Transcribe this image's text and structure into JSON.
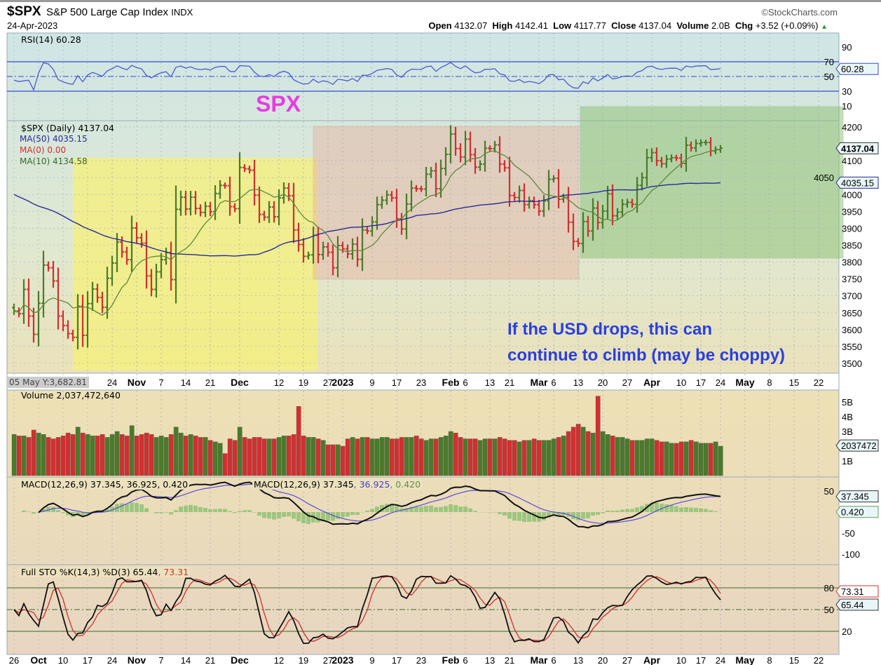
{
  "header": {
    "symbol": "$SPX",
    "name": "S&P 500 Large Cap Index",
    "exchange": "INDX",
    "date": "24-Apr-2023",
    "brand": "©StockCharts.com",
    "open_label": "Open",
    "open": "4132.07",
    "high_label": "High",
    "high": "4142.41",
    "low_label": "Low",
    "low": "4117.77",
    "close_label": "Close",
    "close": "4137.04",
    "volume_label": "Volume",
    "volume": "2.0B",
    "chg_label": "Chg",
    "chg": "+3.52 (+0.09%)"
  },
  "annotations": {
    "title": "SPX",
    "note_line1": "If the USD drops, this can",
    "note_line2": "continue to climb (may be choppy)"
  },
  "colors": {
    "up": "#4a7a2a",
    "down": "#d03030",
    "ma50": "#2a2a9a",
    "ma10": "#5a8a3a",
    "rsi": "#4a5ad0",
    "macd": "#111111",
    "signal": "#5a4ae0",
    "hist": "#8ac070",
    "yellow_box": "#f5f07a",
    "pink_box": "#e8b0a0",
    "green_box": "#8ac070"
  },
  "cursor_readout": "05 May Y:3,682.81",
  "chart_data": [
    {
      "type": "line",
      "title": "RSI(14) 60.28",
      "legend": "RSI(14) 60.28",
      "yticks": [
        90,
        70,
        50,
        30,
        10
      ],
      "ylim": [
        0,
        100
      ],
      "last_label": "60.28"
    },
    {
      "type": "ohlc",
      "title": "$SPX (Daily) 4137.04",
      "legend": [
        "$SPX (Daily) 4137.04",
        "MA(50) 4035.15",
        "MA(0) 0.00",
        "MA(10) 4134.58"
      ],
      "ylim": [
        3475,
        4225
      ],
      "yticks": [
        4200,
        4150,
        4100,
        4050,
        4000,
        3950,
        3900,
        3850,
        3800,
        3750,
        3700,
        3650,
        3600,
        3550,
        3500
      ],
      "last_labels": [
        "4137.04",
        "4035.15"
      ],
      "dates_start": "2022-09-26",
      "dates_end": "2023-04-24",
      "closes": [
        3655,
        3647,
        3719,
        3640,
        3586,
        3678,
        3791,
        3783,
        3744,
        3640,
        3612,
        3588,
        3577,
        3669,
        3583,
        3677,
        3720,
        3695,
        3666,
        3752,
        3797,
        3859,
        3830,
        3807,
        3901,
        3872,
        3856,
        3759,
        3719,
        3771,
        3807,
        3828,
        3748,
        3956,
        3992,
        3957,
        3992,
        3959,
        3947,
        3965,
        3949,
        4003,
        4027,
        4026,
        3964,
        3958,
        4080,
        4076,
        4072,
        3998,
        3941,
        3933,
        3963,
        3934,
        3990,
        4019,
        3996,
        3895,
        3852,
        3817,
        3821,
        3879,
        3822,
        3845,
        3829,
        3783,
        3849,
        3839,
        3824,
        3853,
        3808,
        3895,
        3892,
        3919,
        3970,
        3983,
        3999,
        3990,
        3928,
        3898,
        3972,
        4019,
        4017,
        4016,
        4060,
        4070,
        4017,
        4077,
        4119,
        4179,
        4136,
        4111,
        4164,
        4118,
        4081,
        4090,
        4137,
        4136,
        4147,
        4090,
        4079,
        3997,
        3991,
        4012,
        3970,
        3982,
        3970,
        3951,
        3981,
        4045,
        4048,
        3986,
        3992,
        3918,
        3861,
        3855,
        3920,
        3892,
        3960,
        3917,
        3951,
        4002,
        3937,
        3948,
        3971,
        3977,
        3971,
        4027,
        4050,
        4109,
        4124,
        4100,
        4091,
        4105,
        4109,
        4108,
        4092,
        4146,
        4138,
        4151,
        4154,
        4154,
        4129,
        4133,
        4137
      ]
    },
    {
      "type": "bar",
      "title": "Volume 2,037,472,640",
      "legend": "Volume 2,037,472,640",
      "unit": "B",
      "yticks": [
        "5B",
        "4B",
        "3B",
        "1B"
      ],
      "last_label": "2037472",
      "values": [
        2.8,
        2.7,
        2.7,
        2.6,
        3.1,
        2.9,
        2.8,
        2.6,
        2.5,
        2.6,
        2.7,
        2.9,
        2.8,
        3.3,
        2.9,
        2.8,
        2.7,
        2.7,
        2.8,
        2.6,
        2.8,
        3.0,
        2.8,
        2.7,
        3.4,
        2.7,
        2.8,
        2.9,
        2.8,
        2.6,
        2.7,
        2.6,
        2.8,
        3.3,
        2.9,
        2.7,
        2.8,
        2.7,
        2.6,
        2.6,
        2.4,
        2.3,
        2.2,
        1.5,
        2.5,
        2.4,
        3.3,
        2.6,
        2.5,
        2.6,
        2.6,
        2.5,
        2.5,
        2.5,
        2.6,
        2.7,
        2.7,
        2.8,
        4.7,
        2.7,
        2.6,
        2.6,
        2.5,
        2.4,
        2.1,
        2.1,
        2.1,
        2.0,
        2.5,
        2.6,
        2.5,
        2.6,
        2.6,
        2.5,
        2.5,
        2.6,
        2.6,
        2.5,
        2.5,
        2.6,
        2.6,
        2.6,
        2.7,
        2.5,
        2.4,
        2.5,
        2.5,
        2.6,
        2.7,
        3.0,
        2.9,
        2.6,
        2.5,
        2.5,
        2.5,
        2.4,
        2.5,
        2.5,
        2.5,
        2.6,
        2.5,
        2.4,
        2.4,
        2.3,
        2.4,
        2.4,
        2.5,
        2.4,
        2.4,
        2.4,
        2.5,
        2.6,
        2.7,
        3.0,
        3.3,
        3.5,
        3.3,
        3.0,
        2.9,
        5.4,
        3.0,
        2.8,
        2.7,
        2.6,
        2.6,
        2.5,
        2.4,
        2.4,
        2.4,
        2.5,
        2.5,
        2.4,
        2.3,
        2.3,
        2.2,
        2.2,
        2.3,
        2.3,
        2.4,
        2.3,
        2.2,
        2.2,
        2.2,
        2.3,
        2.0
      ]
    },
    {
      "type": "line",
      "title": "MACD(12,26,9) 37.345, 36.925, 0.420",
      "legend": [
        "MACD(12,26,9) 37.345",
        ", 36.925",
        ", 0.420"
      ],
      "yticks": [
        50,
        -50,
        -100
      ],
      "last_labels": [
        "37.345",
        "0.420"
      ]
    },
    {
      "type": "line",
      "title": "Full STO %K(14,3) %D(3) 65.44, 73.31",
      "legend": [
        "Full STO %K(14,3) %D(3) 65.44",
        ", 73.31"
      ],
      "yticks": [
        80,
        50,
        20
      ],
      "last_labels": [
        "73.31",
        "65.44"
      ]
    }
  ],
  "xaxis_top": [
    {
      "t": "24",
      "b": false
    },
    {
      "t": "Nov",
      "b": true
    },
    {
      "t": "7",
      "b": false
    },
    {
      "t": "14",
      "b": false
    },
    {
      "t": "21",
      "b": false
    },
    {
      "t": "Dec",
      "b": true
    },
    {
      "t": "12",
      "b": false
    },
    {
      "t": "19",
      "b": false
    },
    {
      "t": "27",
      "b": false
    },
    {
      "t": "2023",
      "b": true
    },
    {
      "t": "9",
      "b": false
    },
    {
      "t": "17",
      "b": false
    },
    {
      "t": "23",
      "b": false
    },
    {
      "t": "Feb",
      "b": true
    },
    {
      "t": "6",
      "b": false
    },
    {
      "t": "13",
      "b": false
    },
    {
      "t": "21",
      "b": false
    },
    {
      "t": "Mar",
      "b": true
    },
    {
      "t": "6",
      "b": false
    },
    {
      "t": "13",
      "b": false
    },
    {
      "t": "20",
      "b": false
    },
    {
      "t": "27",
      "b": false
    },
    {
      "t": "Apr",
      "b": true
    },
    {
      "t": "10",
      "b": false
    },
    {
      "t": "17",
      "b": false
    },
    {
      "t": "24",
      "b": false
    },
    {
      "t": "May",
      "b": true
    },
    {
      "t": "8",
      "b": false
    },
    {
      "t": "15",
      "b": false
    },
    {
      "t": "22",
      "b": false
    }
  ],
  "xaxis_bottom_extra": [
    {
      "t": "26",
      "b": false
    },
    {
      "t": "Oct",
      "b": true
    },
    {
      "t": "10",
      "b": false
    },
    {
      "t": "17",
      "b": false
    }
  ]
}
